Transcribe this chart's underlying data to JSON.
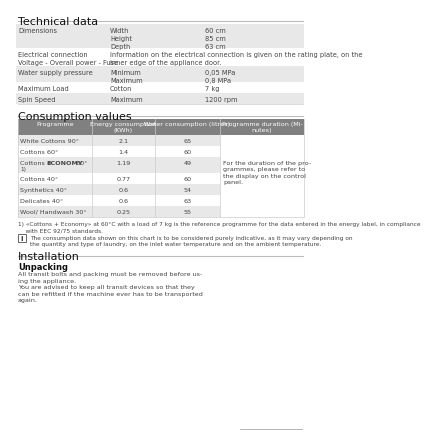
{
  "title1": "Technical data",
  "title2": "Consumption values",
  "title3": "Installation",
  "subtitle3": "Unpacking",
  "tech_rows": [
    {
      "col1": "Dimensions",
      "col2": "Width\nHeight\nDepth",
      "col3": "60 cm\n85 cm\n63 cm",
      "shaded": true
    },
    {
      "col1": "Electrical connection\nVoltage - Overall power - Fuse",
      "col2": "Information on the electrical connection is given on the rating plate, on the\ninner edge of the appliance door.",
      "col3": "",
      "shaded": false
    },
    {
      "col1": "Water supply pressure",
      "col2": "Minimum\nMaximum",
      "col3": "0,05 MPa\n0,8 MPa",
      "shaded": true
    },
    {
      "col1": "Maximum Load",
      "col2": "Cotton",
      "col3": "7 kg",
      "shaded": false
    },
    {
      "col1": "Spin Speed",
      "col2": "Maximum",
      "col3": "1200 rpm",
      "shaded": true
    }
  ],
  "consumption_headers": [
    "Programme",
    "Energy consumption\n(KWh)",
    "Water consumption (litres)",
    "Programme duration (Mi-\nnutes)"
  ],
  "consumption_rows": [
    [
      "White Cottons 90°",
      "2.1",
      "65",
      ""
    ],
    [
      "Cottons 60°",
      "1.4",
      "60",
      ""
    ],
    [
      "Cottons + ECONOMY 60°",
      "1.19",
      "49",
      "For the duration of the pro-\ngrammes, please refer to\nthe display on the control\npanel."
    ],
    [
      "Cottons 40°",
      "0.77",
      "60",
      ""
    ],
    [
      "Synthetics 40°",
      "0.6",
      "54",
      ""
    ],
    [
      "Delicates 40°",
      "0.6",
      "63",
      ""
    ],
    [
      "Wool/ Handwash 30°",
      "0.25",
      "55",
      ""
    ]
  ],
  "footnote1": "1) «Cottons + Economy» at 60°C with a load of 7 kg is the reference programme for the data entered in the energy label, in compliance\n    with EEC 92/75 standards.",
  "footnote2": "The consumption data shown on this chart is to be considered purely indicative, as it may vary depending on\nthe quantity and type of laundry, on the inlet water temperature and on the ambient temperature.",
  "unpacking_text": "All transit bolts and packing must be removed before us-\ning the appliance.\nYou are advised to keep all transit devices so that they\ncan be refitted if the machine ever has to be transported\nagain.",
  "bg_color": "#ffffff",
  "header_bg": "#808080",
  "header_fg": "#ffffff",
  "shaded_row": "#e8e8e8",
  "unshaded_row": "#ffffff",
  "text_color": "#444444",
  "title_color": "#111111"
}
